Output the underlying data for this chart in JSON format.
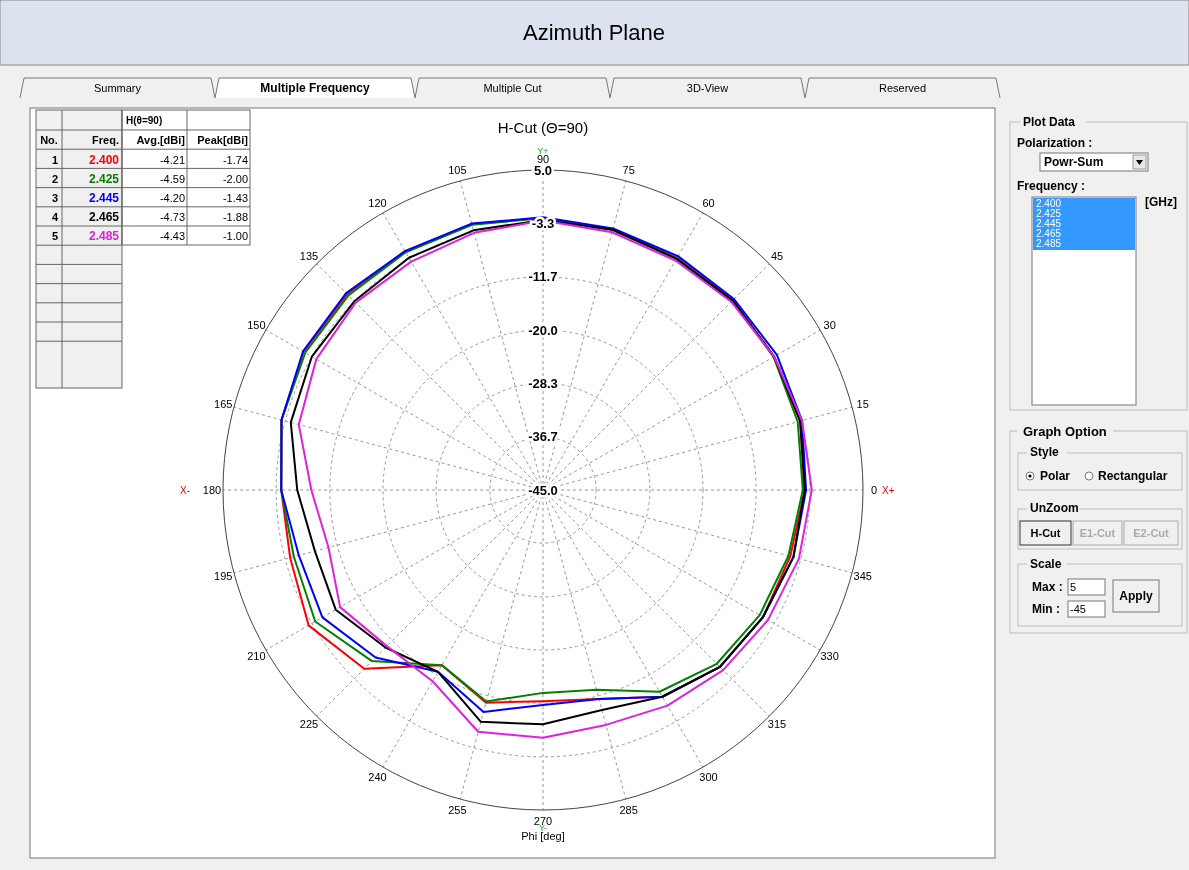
{
  "chart_data": {
    "type": "radar",
    "title": "Azimuth Plane",
    "subtitle": "H-Cut (Θ=90)",
    "xlabel": "Phi [deg]",
    "categories": [
      "90",
      "75",
      "60",
      "45",
      "30",
      "15",
      "0",
      "345",
      "330",
      "315",
      "300",
      "285",
      "270",
      "255",
      "240",
      "225",
      "210",
      "195",
      "180",
      "165",
      "150",
      "135",
      "120",
      "105"
    ],
    "series": [
      {
        "name": "2.400",
        "color": "#ff0000",
        "values": [
          -2.5,
          -2.9,
          -3.1,
          -3.1,
          -3.3,
          -3.4,
          -4.1,
          -5.0,
          -5.3,
          -5.9,
          -7.7,
          -11.2,
          -12.0,
          -10.6,
          -13.4,
          -5.5,
          -2.7,
          -4.1,
          -4.1,
          -2.7,
          -1.8,
          -1.7,
          -1.9,
          -2.0
        ]
      },
      {
        "name": "2.425",
        "color": "#008000",
        "values": [
          -2.5,
          -2.9,
          -3.2,
          -3.2,
          -3.4,
          -3.8,
          -4.4,
          -5.3,
          -5.9,
          -6.6,
          -8.6,
          -12.7,
          -13.3,
          -10.8,
          -13.4,
          -7.2,
          -3.9,
          -4.7,
          -4.1,
          -2.7,
          -2.1,
          -2.0,
          -2.1,
          -2.1
        ]
      },
      {
        "name": "2.445",
        "color": "#0000ff",
        "values": [
          -2.4,
          -2.7,
          -2.8,
          -2.8,
          -2.8,
          -3.1,
          -3.9,
          -4.5,
          -5.3,
          -5.9,
          -7.7,
          -11.2,
          -11.4,
          -9.1,
          -12.2,
          -8.0,
          -5.2,
          -5.5,
          -4.1,
          -2.7,
          -1.7,
          -1.5,
          -1.9,
          -1.9
        ]
      },
      {
        "name": "2.465",
        "color": "#000000",
        "values": [
          -2.8,
          -2.9,
          -3.3,
          -3.1,
          -3.3,
          -3.4,
          -4.1,
          -4.5,
          -5.3,
          -5.9,
          -7.7,
          -9.4,
          -8.4,
          -7.5,
          -12.2,
          -10.2,
          -7.6,
          -8.1,
          -6.6,
          -4.2,
          -3.3,
          -3.3,
          -3.1,
          -3.0
        ]
      },
      {
        "name": "2.485",
        "color": "#dd22dd",
        "values": [
          -2.9,
          -3.3,
          -3.6,
          -3.4,
          -3.3,
          -3.1,
          -3.0,
          -3.6,
          -4.4,
          -5.2,
          -6.1,
          -7.0,
          -6.3,
          -5.9,
          -10.5,
          -10.5,
          -8.4,
          -10.3,
          -8.8,
          -5.5,
          -4.1,
          -3.6,
          -3.8,
          -3.4
        ]
      }
    ],
    "ylim": [
      -45,
      5
    ],
    "yticks": [
      {
        "value": -45,
        "label": "-45.0"
      },
      {
        "value": -36.7,
        "label": "-36.7"
      },
      {
        "value": -28.3,
        "label": "-28.3"
      },
      {
        "value": -20,
        "label": "-20.0"
      },
      {
        "value": -11.7,
        "label": "-11.7"
      },
      {
        "value": -3.3,
        "label": "-3.3"
      },
      {
        "value": 5,
        "label": "5.0"
      }
    ],
    "grid": true,
    "legend": "top left",
    "annotations": [
      "Y+",
      "Y-",
      "X+",
      "X-",
      "Summary",
      "Multiple Frequency",
      "Multiple Cut",
      "3D-View",
      "Reserved",
      "H(θ=90)",
      "No.",
      "Freq.",
      "Avg.[dBi]",
      "Peak[dBi]",
      "1",
      "2",
      "3",
      "4",
      "5",
      "-4.21",
      "-4.59",
      "-4.20",
      "-4.73",
      "-4.43",
      "-1.74",
      "-2.00",
      "-1.43",
      "-1.88",
      "-1.00",
      "Plot Data",
      "Polarization :",
      "Powr-Sum",
      "Frequency :",
      "2.400",
      "2.425",
      "2.445",
      "2.465",
      "2.485",
      "[GHz]",
      "Graph Option",
      "Style",
      "Polar",
      "Rectangular",
      "UnZoom",
      "H-Cut",
      "E1-Cut",
      "E2-Cut",
      "Scale",
      "Max :",
      "5",
      "Min :",
      "-45",
      "Apply"
    ]
  }
}
